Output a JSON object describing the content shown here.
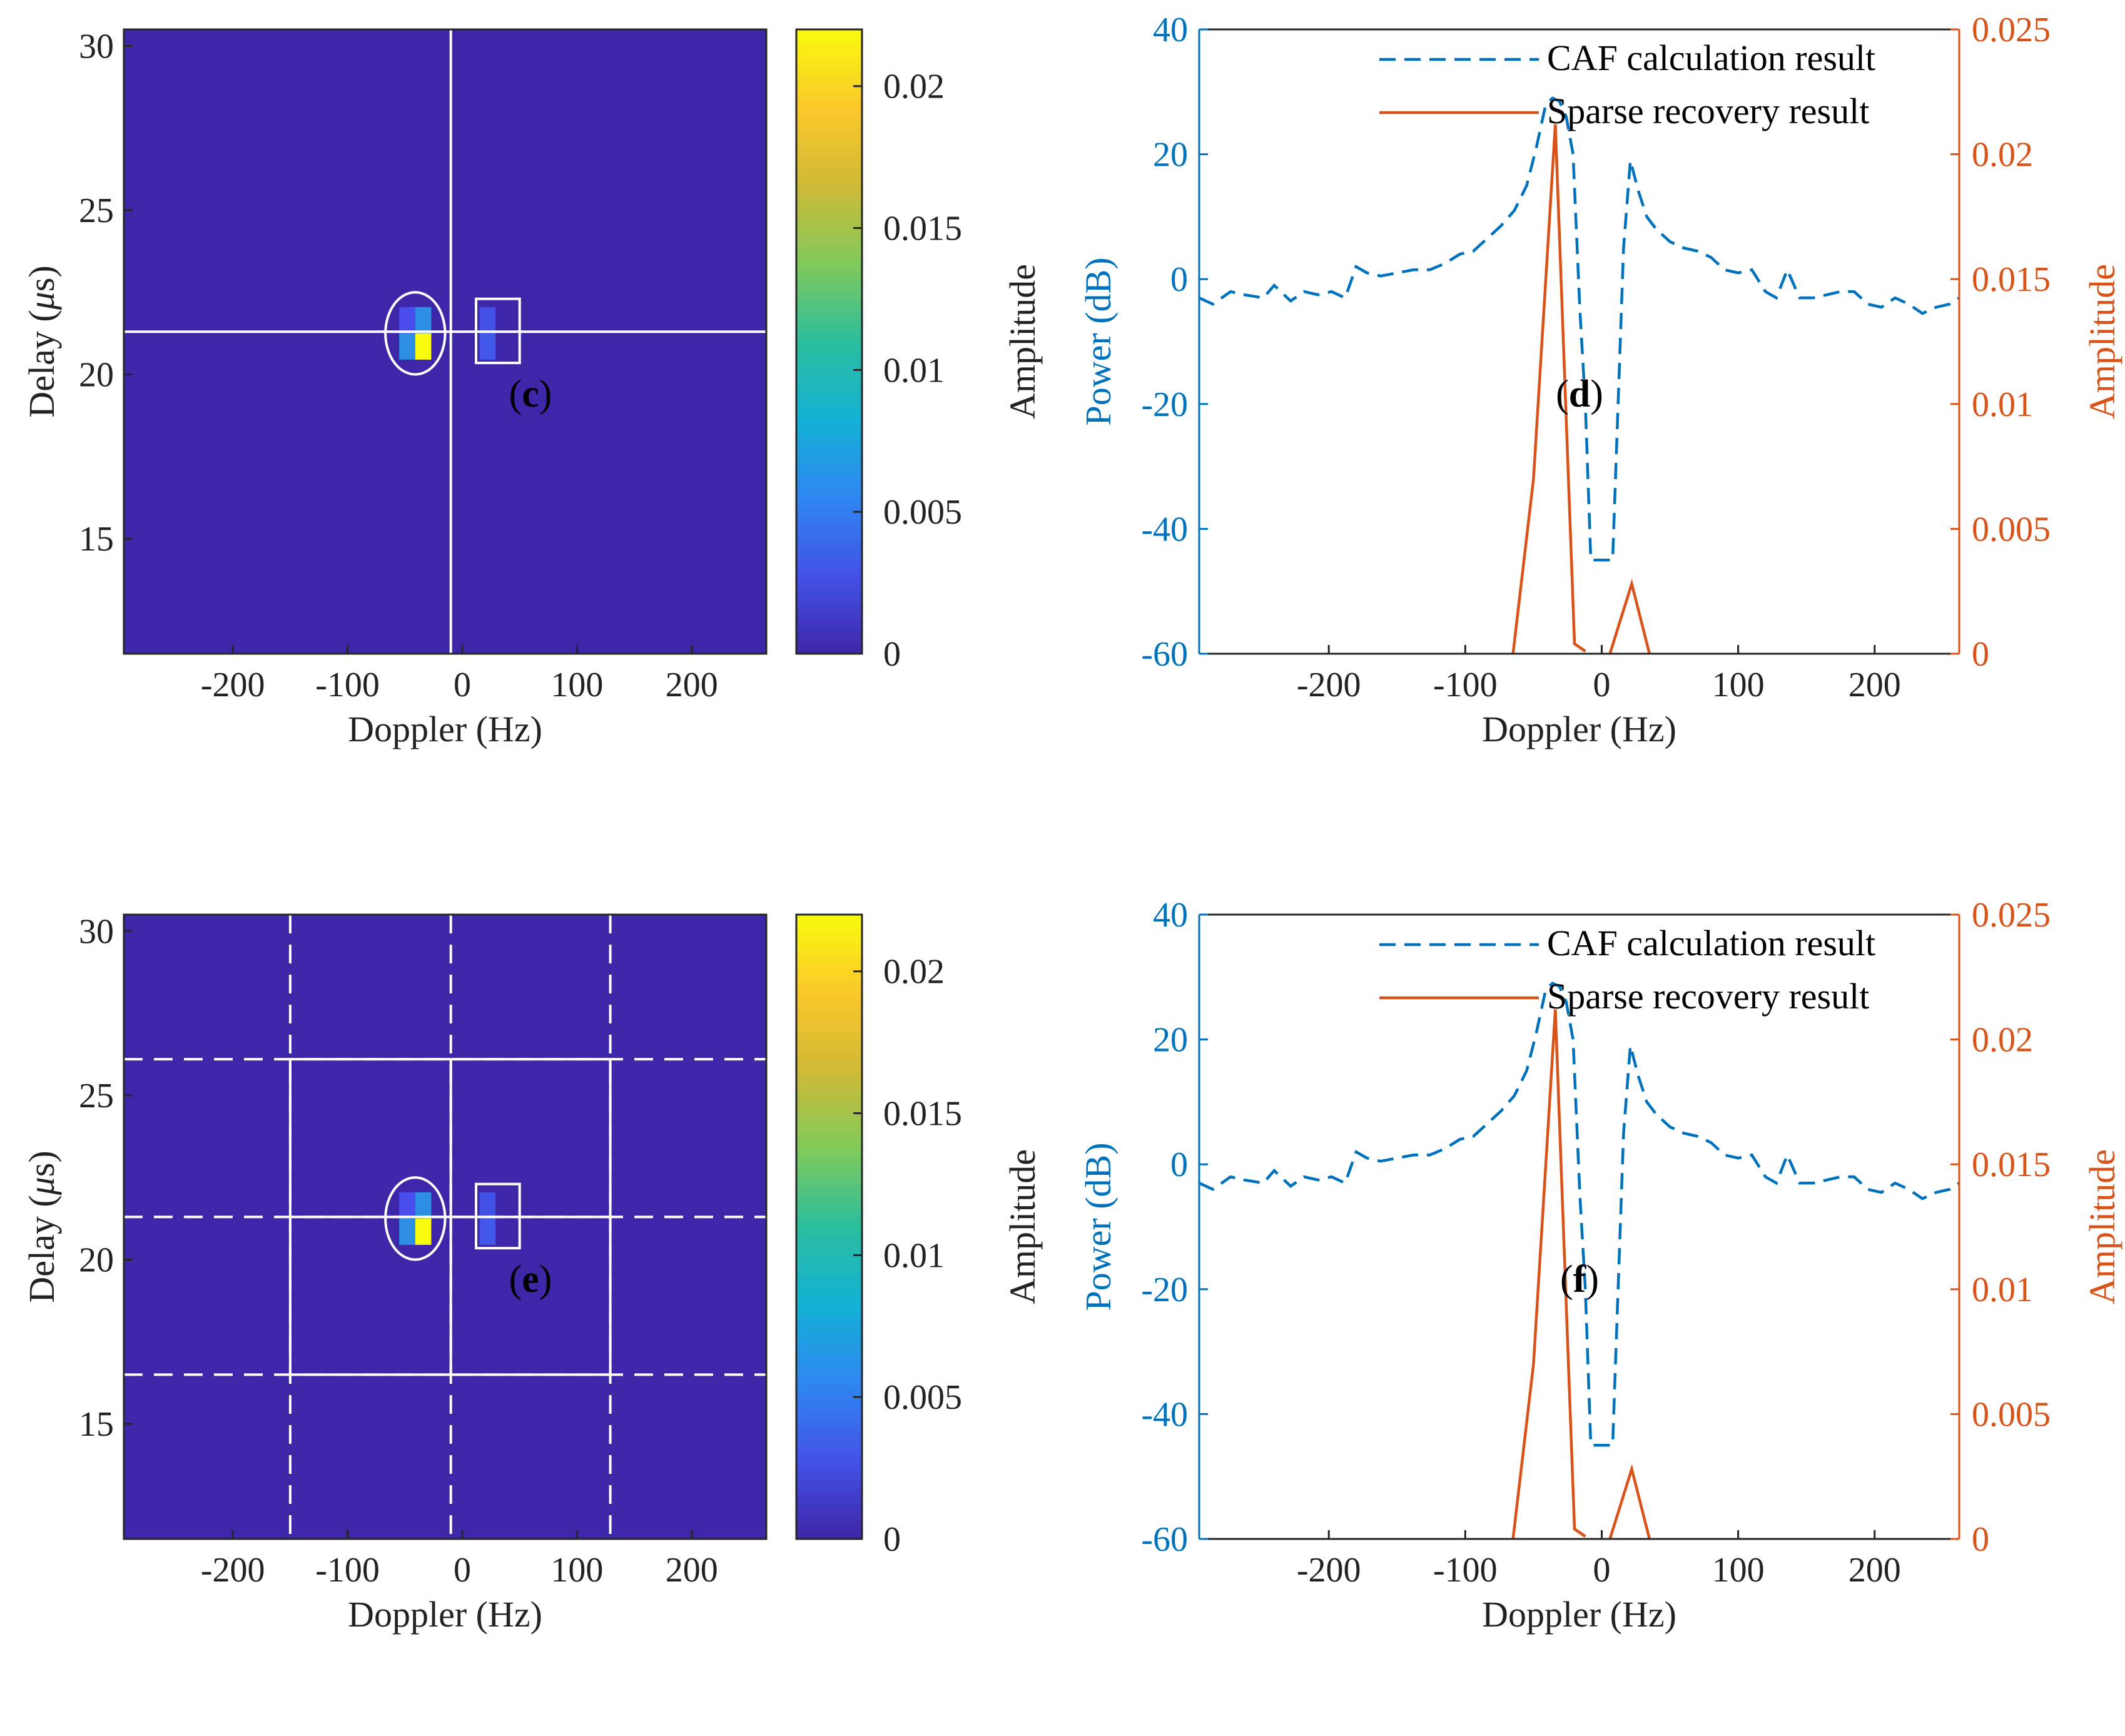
{
  "figure": {
    "background": "#ffffff"
  },
  "colors": {
    "heatmap_bg": "#3E26A8",
    "cell_bright": "#F9FB0E",
    "cell_mid": "#2D8FE4",
    "cell_dim1": "#4A4DED",
    "cell_dim2": "#4150E5",
    "cell_dim3": "#4258E9",
    "overlay": "#ffffff",
    "caf": "#0072BD",
    "sparse": "#D95319",
    "axis": "#262626"
  },
  "colorbar_stops": [
    "#3E26A8",
    "#4352E8",
    "#2E87F0",
    "#13B1D5",
    "#2BBE9E",
    "#81CA5A",
    "#D0BA36",
    "#FBC82A",
    "#F9FB0E"
  ],
  "chart_data": [
    {
      "id": "c",
      "type": "heatmap",
      "panel_label": "c",
      "xlabel": "Doppler (Hz)",
      "ylabel_prefix": "Delay (",
      "ylabel_symbol": "μ",
      "ylabel_suffix": "s)",
      "xlim": [
        -295,
        265
      ],
      "ylim": [
        11.5,
        30.5
      ],
      "xticks": [
        -200,
        -100,
        0,
        100,
        200
      ],
      "yticks": [
        15,
        20,
        25,
        30
      ],
      "colorbar": {
        "label": "Amplitude",
        "lim": [
          0,
          0.022
        ],
        "ticks": [
          0,
          0.005,
          0.01,
          0.015,
          0.02
        ],
        "tick_labels": [
          "0",
          "0.005",
          "0.01",
          "0.015",
          "0.02"
        ]
      },
      "cells": [
        {
          "doppler": -48,
          "delay": 21.65,
          "value": 0.0018,
          "color": "#4A4DED"
        },
        {
          "doppler": -34,
          "delay": 21.65,
          "value": 0.0085,
          "color": "#2D8FE4"
        },
        {
          "doppler": -48,
          "delay": 20.85,
          "value": 0.0075,
          "color": "#2D8FE4"
        },
        {
          "doppler": -34,
          "delay": 20.85,
          "value": 0.022,
          "color": "#F9FB0E"
        },
        {
          "doppler": 22,
          "delay": 21.65,
          "value": 0.0015,
          "color": "#4150E5"
        },
        {
          "doppler": 22,
          "delay": 20.85,
          "value": 0.003,
          "color": "#4258E9"
        }
      ],
      "ellipse": {
        "doppler": -41,
        "delay": 21.25,
        "rx": 26,
        "ry": 1.25
      },
      "rect": {
        "doppler": [
          12,
          50
        ],
        "delay": [
          20.35,
          22.3
        ]
      },
      "solid_v": [
        -10
      ],
      "solid_h": [
        21.3
      ],
      "dashed_v": [],
      "dashed_h": [],
      "box": null
    },
    {
      "id": "d",
      "type": "line",
      "panel_label": "d",
      "xlabel": "Doppler (Hz)",
      "ylabel_left": "Power (dB)",
      "ylabel_right": "Amplitude",
      "xlim": [
        -295,
        262
      ],
      "ylim_left": [
        -60,
        40
      ],
      "ylim_right": [
        0,
        0.025
      ],
      "xticks": [
        -200,
        -100,
        0,
        100,
        200
      ],
      "yticks_left": [
        -60,
        -40,
        -20,
        0,
        20,
        40
      ],
      "yticks_right": [
        0,
        0.005,
        0.01,
        0.015,
        0.02,
        0.025
      ],
      "yticks_right_labels": [
        "0",
        "0.005",
        "0.01",
        "0.015",
        "0.02",
        "0.025"
      ],
      "legend": [
        "CAF calculation result",
        "Sparse recovery result"
      ],
      "series": [
        {
          "name": "CAF calculation result",
          "axis": "left",
          "style": "dashed",
          "x": [
            -295,
            -285,
            -272,
            -262,
            -248,
            -240,
            -228,
            -218,
            -208,
            -198,
            -188,
            -180,
            -172,
            -162,
            -150,
            -138,
            -126,
            -115,
            -104,
            -94,
            -84,
            -74,
            -64,
            -55,
            -48,
            -41,
            -36,
            -31,
            -26,
            -21,
            -16,
            -12,
            -8,
            -4,
            0,
            4,
            8,
            12,
            16,
            21,
            27,
            33,
            40,
            50,
            60,
            70,
            80,
            90,
            100,
            110,
            120,
            128,
            136,
            145,
            155,
            165,
            175,
            185,
            195,
            205,
            215,
            225,
            235,
            245,
            255,
            262
          ],
          "y": [
            -3,
            -4,
            -2,
            -2.5,
            -3,
            -1,
            -3.5,
            -2,
            -2.5,
            -2,
            -3,
            2,
            1,
            0.5,
            1,
            1.5,
            1.5,
            2.5,
            4,
            4.5,
            6.5,
            8.5,
            11,
            15,
            21,
            28,
            29,
            28.5,
            26,
            20,
            -5,
            -20,
            -45,
            -45,
            -45,
            -45,
            -45,
            -20,
            5,
            19,
            14,
            10,
            8,
            6,
            5,
            4.5,
            3.5,
            1.5,
            1,
            1.5,
            -2,
            -3,
            1.5,
            -3,
            -3,
            -2.5,
            -2,
            -2,
            -4,
            -4.5,
            -3,
            -4,
            -5.5,
            -4.5,
            -4,
            -3
          ]
        },
        {
          "name": "Sparse recovery result",
          "axis": "right",
          "style": "solid",
          "segments": [
            {
              "x": [
                -65,
                -50,
                -34,
                -20,
                -20,
                -12
              ],
              "y": [
                0,
                0.007,
                0.0212,
                0.0005,
                0.0004,
                0.0001
              ]
            },
            {
              "x": [
                6,
                22,
                35
              ],
              "y": [
                0,
                0.0028,
                0
              ]
            }
          ]
        }
      ]
    },
    {
      "id": "e",
      "type": "heatmap",
      "panel_label": "e",
      "xlabel": "Doppler (Hz)",
      "ylabel_prefix": "Delay (",
      "ylabel_symbol": "μ",
      "ylabel_suffix": "s)",
      "xlim": [
        -295,
        265
      ],
      "ylim": [
        11.5,
        30.5
      ],
      "xticks": [
        -200,
        -100,
        0,
        100,
        200
      ],
      "yticks": [
        15,
        20,
        25,
        30
      ],
      "colorbar": {
        "label": "Amplitude",
        "lim": [
          0,
          0.022
        ],
        "ticks": [
          0,
          0.005,
          0.01,
          0.015,
          0.02
        ],
        "tick_labels": [
          "0",
          "0.005",
          "0.01",
          "0.015",
          "0.02"
        ]
      },
      "cells": [
        {
          "doppler": -48,
          "delay": 21.65,
          "value": 0.0018,
          "color": "#4A4DED"
        },
        {
          "doppler": -34,
          "delay": 21.65,
          "value": 0.0085,
          "color": "#2D8FE4"
        },
        {
          "doppler": -48,
          "delay": 20.85,
          "value": 0.0075,
          "color": "#2D8FE4"
        },
        {
          "doppler": -34,
          "delay": 20.85,
          "value": 0.022,
          "color": "#F9FB0E"
        },
        {
          "doppler": 22,
          "delay": 21.65,
          "value": 0.0015,
          "color": "#4150E5"
        },
        {
          "doppler": 22,
          "delay": 20.85,
          "value": 0.003,
          "color": "#4258E9"
        }
      ],
      "ellipse": {
        "doppler": -41,
        "delay": 21.25,
        "rx": 26,
        "ry": 1.25
      },
      "rect": {
        "doppler": [
          12,
          50
        ],
        "delay": [
          20.35,
          22.3
        ]
      },
      "solid_v": [
        -10
      ],
      "solid_h": [
        21.3
      ],
      "dashed_v": [
        -150,
        -10,
        129
      ],
      "dashed_h": [
        26.1,
        21.3,
        16.5
      ],
      "box": {
        "doppler": [
          -150,
          129
        ],
        "delay": [
          16.5,
          26.1
        ]
      }
    },
    {
      "id": "f",
      "type": "line",
      "panel_label": "f",
      "xlabel": "Doppler (Hz)",
      "ylabel_left": "Power (dB)",
      "ylabel_right": "Amplitude",
      "xlim": [
        -295,
        262
      ],
      "ylim_left": [
        -60,
        40
      ],
      "ylim_right": [
        0,
        0.025
      ],
      "xticks": [
        -200,
        -100,
        0,
        100,
        200
      ],
      "yticks_left": [
        -60,
        -40,
        -20,
        0,
        20,
        40
      ],
      "yticks_right": [
        0,
        0.005,
        0.01,
        0.015,
        0.02,
        0.025
      ],
      "yticks_right_labels": [
        "0",
        "0.005",
        "0.01",
        "0.015",
        "0.02",
        "0.025"
      ],
      "legend": [
        "CAF calculation result",
        "Sparse recovery result"
      ],
      "series": [
        {
          "name": "CAF calculation result",
          "axis": "left",
          "style": "dashed",
          "x": [
            -295,
            -285,
            -272,
            -262,
            -248,
            -240,
            -228,
            -218,
            -208,
            -198,
            -188,
            -180,
            -172,
            -162,
            -150,
            -138,
            -126,
            -115,
            -104,
            -94,
            -84,
            -74,
            -64,
            -55,
            -48,
            -41,
            -36,
            -31,
            -26,
            -21,
            -16,
            -12,
            -8,
            -4,
            0,
            4,
            8,
            12,
            16,
            21,
            27,
            33,
            40,
            50,
            60,
            70,
            80,
            90,
            100,
            110,
            120,
            128,
            136,
            145,
            155,
            165,
            175,
            185,
            195,
            205,
            215,
            225,
            235,
            245,
            255,
            262
          ],
          "y": [
            -3,
            -4,
            -2,
            -2.5,
            -3,
            -1,
            -3.5,
            -2,
            -2.5,
            -2,
            -3,
            2,
            1,
            0.5,
            1,
            1.5,
            1.5,
            2.5,
            4,
            4.5,
            6.5,
            8.5,
            11,
            15,
            21,
            28,
            29,
            28.5,
            26,
            20,
            -5,
            -20,
            -45,
            -45,
            -45,
            -45,
            -45,
            -20,
            5,
            19,
            14,
            10,
            8,
            6,
            5,
            4.5,
            3.5,
            1.5,
            1,
            1.5,
            -2,
            -3,
            1.5,
            -3,
            -3,
            -2.5,
            -2,
            -2,
            -4,
            -4.5,
            -3,
            -4,
            -5.5,
            -4.5,
            -4,
            -3
          ]
        },
        {
          "name": "Sparse recovery result",
          "axis": "right",
          "style": "solid",
          "segments": [
            {
              "x": [
                -65,
                -50,
                -34,
                -20,
                -20,
                -12
              ],
              "y": [
                0,
                0.007,
                0.0212,
                0.0005,
                0.0004,
                0.0001
              ]
            },
            {
              "x": [
                6,
                22,
                35
              ],
              "y": [
                0,
                0.0028,
                0
              ]
            }
          ]
        }
      ]
    }
  ]
}
